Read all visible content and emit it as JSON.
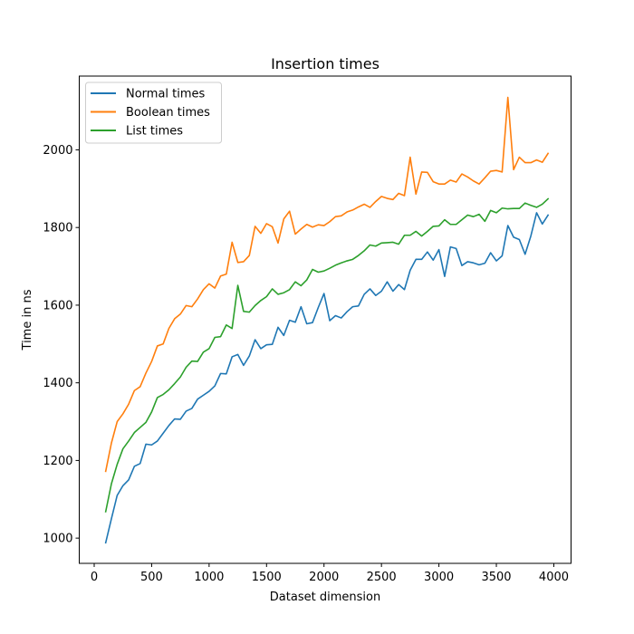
{
  "chart_data": {
    "type": "line",
    "title": "Insertion times",
    "xlabel": "Dataset dimension",
    "ylabel": "Time in ns",
    "xlim": [
      -130,
      4150
    ],
    "ylim": [
      935,
      2190
    ],
    "xticks": [
      0,
      500,
      1000,
      1500,
      2000,
      2500,
      3000,
      3500,
      4000
    ],
    "yticks": [
      1000,
      1200,
      1400,
      1600,
      1800,
      2000
    ],
    "grid": false,
    "legend_position": "top-left",
    "x": [
      100,
      150,
      200,
      250,
      300,
      350,
      400,
      450,
      500,
      550,
      600,
      650,
      700,
      750,
      800,
      850,
      900,
      950,
      1000,
      1050,
      1100,
      1150,
      1200,
      1250,
      1300,
      1350,
      1400,
      1450,
      1500,
      1550,
      1600,
      1650,
      1700,
      1750,
      1800,
      1850,
      1900,
      1950,
      2000,
      2050,
      2100,
      2150,
      2200,
      2250,
      2300,
      2350,
      2400,
      2450,
      2500,
      2550,
      2600,
      2650,
      2700,
      2750,
      2800,
      2850,
      2900,
      2950,
      3000,
      3050,
      3100,
      3150,
      3200,
      3250,
      3300,
      3350,
      3400,
      3450,
      3500,
      3550,
      3600,
      3650,
      3700,
      3750,
      3800,
      3850,
      3900,
      3950
    ],
    "series": [
      {
        "name": "Normal times",
        "color": "#1f77b4",
        "values": [
          988,
          1050,
          1110,
          1135,
          1150,
          1185,
          1192,
          1242,
          1240,
          1250,
          1270,
          1290,
          1307,
          1306,
          1327,
          1334,
          1358,
          1368,
          1378,
          1392,
          1424,
          1423,
          1467,
          1473,
          1445,
          1469,
          1511,
          1488,
          1498,
          1499,
          1543,
          1522,
          1561,
          1556,
          1596,
          1552,
          1555,
          1594,
          1630,
          1560,
          1573,
          1567,
          1583,
          1596,
          1598,
          1628,
          1642,
          1625,
          1636,
          1660,
          1636,
          1653,
          1640,
          1690,
          1718,
          1718,
          1737,
          1716,
          1743,
          1674,
          1750,
          1746,
          1702,
          1712,
          1709,
          1704,
          1708,
          1735,
          1714,
          1727,
          1805,
          1775,
          1769,
          1731,
          1778,
          1838,
          1809,
          1832
        ]
      },
      {
        "name": "Boolean times",
        "color": "#ff7f0e",
        "values": [
          1172,
          1245,
          1300,
          1320,
          1345,
          1380,
          1390,
          1425,
          1455,
          1495,
          1500,
          1540,
          1565,
          1577,
          1599,
          1596,
          1616,
          1640,
          1655,
          1644,
          1675,
          1680,
          1762,
          1710,
          1712,
          1728,
          1803,
          1785,
          1810,
          1802,
          1760,
          1822,
          1842,
          1783,
          1796,
          1808,
          1801,
          1807,
          1805,
          1815,
          1828,
          1830,
          1840,
          1845,
          1853,
          1860,
          1852,
          1867,
          1880,
          1875,
          1872,
          1888,
          1882,
          1981,
          1886,
          1943,
          1942,
          1918,
          1912,
          1912,
          1922,
          1917,
          1938,
          1930,
          1920,
          1912,
          1928,
          1945,
          1947,
          1943,
          2135,
          1949,
          1981,
          1967,
          1967,
          1974,
          1968,
          1991
        ]
      },
      {
        "name": "List times",
        "color": "#2ca02c",
        "values": [
          1068,
          1140,
          1190,
          1230,
          1250,
          1272,
          1285,
          1298,
          1325,
          1362,
          1370,
          1382,
          1398,
          1415,
          1440,
          1456,
          1455,
          1479,
          1488,
          1517,
          1519,
          1549,
          1540,
          1651,
          1584,
          1582,
          1599,
          1612,
          1622,
          1642,
          1628,
          1632,
          1640,
          1660,
          1650,
          1665,
          1692,
          1685,
          1688,
          1695,
          1703,
          1709,
          1714,
          1718,
          1728,
          1740,
          1755,
          1752,
          1760,
          1761,
          1762,
          1757,
          1780,
          1780,
          1790,
          1778,
          1790,
          1803,
          1804,
          1820,
          1808,
          1808,
          1820,
          1832,
          1828,
          1834,
          1816,
          1844,
          1838,
          1850,
          1848,
          1849,
          1849,
          1863,
          1857,
          1852,
          1860,
          1874
        ]
      }
    ]
  }
}
